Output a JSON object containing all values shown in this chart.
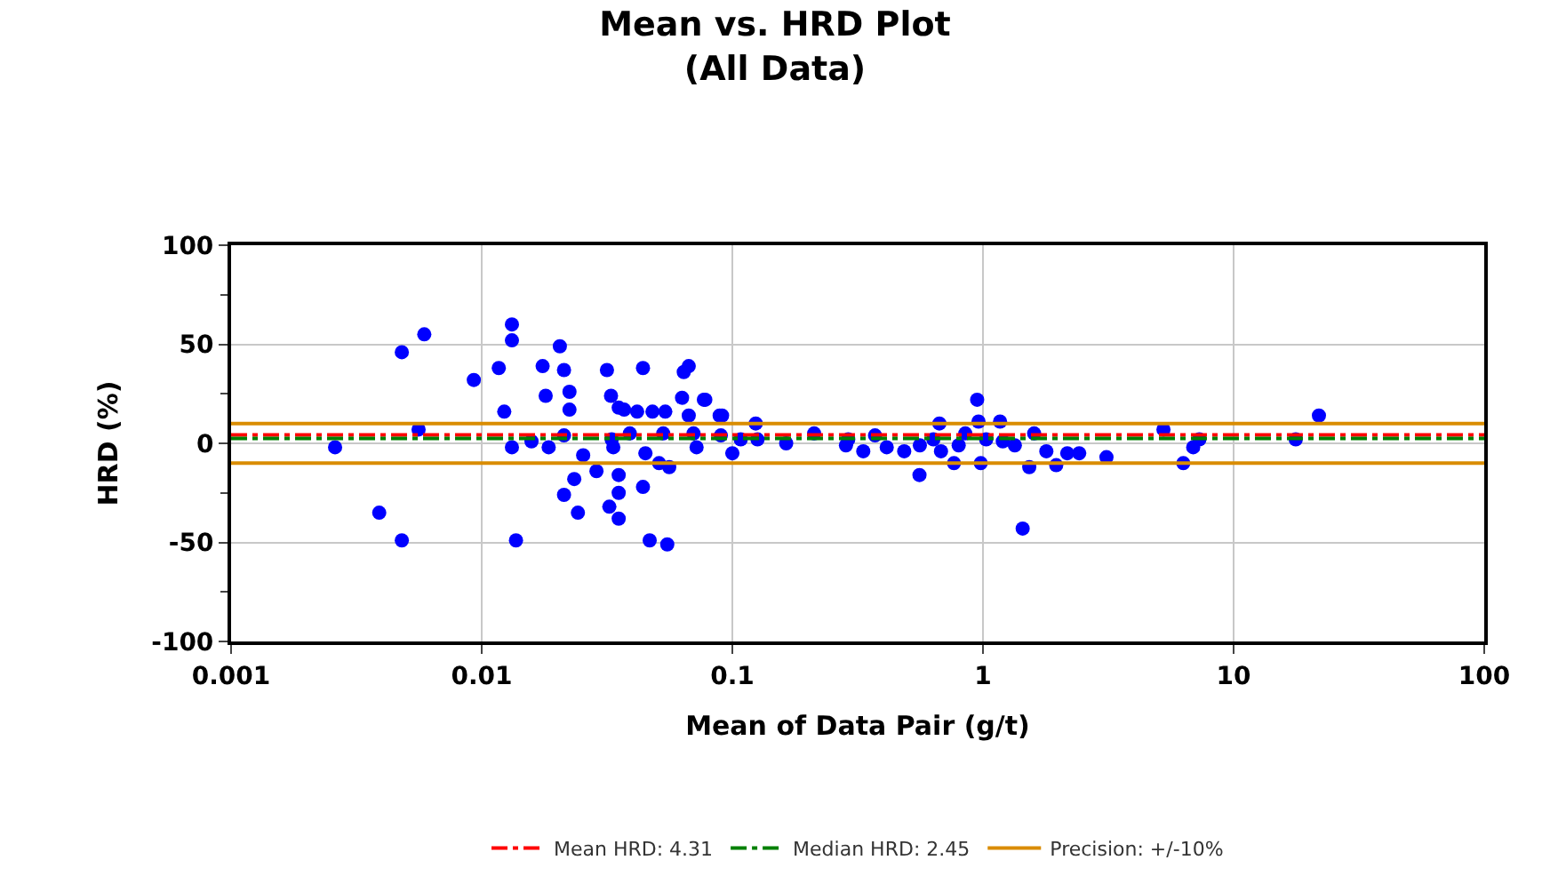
{
  "chart_data": {
    "type": "scatter",
    "title": "Mean vs. HRD Plot\n(All Data)",
    "xlabel": "Mean of Data Pair (g/t)",
    "ylabel": "HRD (%)",
    "log": "x",
    "grid": true,
    "legend": "bottom",
    "marker": "circle",
    "xlim": [
      0.001,
      100
    ],
    "xticks": [
      0.001,
      0.01,
      0.1,
      1,
      10,
      100
    ],
    "ylim": [
      -100,
      100
    ],
    "yticks": [
      -100,
      -50,
      0,
      50,
      100
    ],
    "series": [
      {
        "color": "#0000ff",
        "x": [
          0.0026,
          0.0039,
          0.0048,
          0.0048,
          0.0056,
          0.0059,
          0.0093,
          0.0117,
          0.0123,
          0.0132,
          0.0132,
          0.0132,
          0.0137,
          0.0158,
          0.0175,
          0.018,
          0.0185,
          0.0205,
          0.0213,
          0.0213,
          0.0213,
          0.0224,
          0.0224,
          0.0234,
          0.0242,
          0.0254,
          0.0287,
          0.0316,
          0.0328,
          0.0323,
          0.033,
          0.0335,
          0.0352,
          0.0352,
          0.0352,
          0.0352,
          0.037,
          0.039,
          0.0417,
          0.044,
          0.044,
          0.045,
          0.0468,
          0.048,
          0.051,
          0.053,
          0.054,
          0.055,
          0.056,
          0.063,
          0.064,
          0.067,
          0.067,
          0.07,
          0.072,
          0.077,
          0.091,
          0.1,
          0.078,
          0.089,
          0.09,
          0.108,
          0.124,
          0.126,
          0.164,
          0.212,
          0.284,
          0.29,
          0.333,
          0.371,
          0.413,
          0.485,
          0.558,
          0.56,
          0.634,
          0.67,
          0.68,
          0.766,
          0.8,
          0.85,
          0.948,
          0.96,
          0.98,
          1.03,
          1.17,
          1.2,
          1.34,
          1.44,
          1.53,
          1.6,
          1.79,
          1.96,
          2.17,
          2.42,
          3.11,
          5.25,
          6.3,
          6.9,
          7.3,
          17.7,
          21.9
        ],
        "values": [
          -2,
          -35,
          46,
          -49,
          7,
          55,
          32,
          38,
          16,
          60,
          52,
          -2,
          -49,
          1,
          39,
          24,
          -2,
          49,
          37,
          4,
          -26,
          26,
          17,
          -18,
          -35,
          -6,
          -14,
          37,
          24,
          -32,
          2,
          -2,
          18,
          -16,
          -25,
          -38,
          17,
          5,
          16,
          38,
          -22,
          -5,
          -49,
          16,
          -10,
          5,
          16,
          -51,
          -12,
          23,
          36,
          39,
          14,
          5,
          -2,
          22,
          14,
          -5,
          22,
          14,
          4,
          2,
          10,
          2,
          0,
          5,
          -1,
          2,
          -4,
          4,
          -2,
          -4,
          -16,
          -1,
          2,
          10,
          -4,
          -10,
          -1,
          5,
          22,
          11,
          -10,
          2,
          11,
          1,
          -1,
          -43,
          -12,
          5,
          -4,
          -11,
          -5,
          -5,
          -7,
          7,
          -10,
          -2,
          2,
          2,
          14
        ]
      }
    ],
    "ref_lines": [
      {
        "axis": "y",
        "value": 4.31,
        "label": "Mean HRD: 4.31",
        "color": "#ff0000",
        "line_style": "dashdot"
      },
      {
        "axis": "y",
        "value": 2.45,
        "label": "Median HRD: 2.45",
        "color": "#008000",
        "line_style": "dashdot"
      },
      {
        "axis": "y",
        "value": 10,
        "label": "Precision: +/-10%",
        "color": "#d98c00",
        "line_style": "solid"
      },
      {
        "axis": "y",
        "value": -10,
        "label": null,
        "color": "#d98c00",
        "line_style": "solid"
      }
    ]
  }
}
